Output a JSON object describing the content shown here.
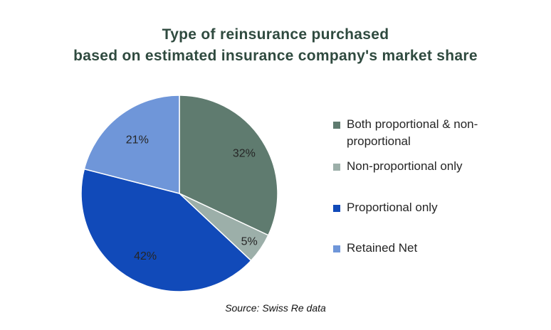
{
  "chart_data": {
    "type": "pie",
    "title_lines": [
      "Type of reinsurance purchased",
      "based on estimated insurance company's market share"
    ],
    "slices": [
      {
        "name": "Both proportional & non-proportional",
        "legend_lines": [
          "Both proportional & non-",
          "proportional"
        ],
        "value": 32,
        "label": "32%",
        "color": "#5f7b6f"
      },
      {
        "name": "Non-proportional only",
        "legend_lines": [
          "Non-proportional only"
        ],
        "value": 5,
        "label": "5%",
        "color": "#9cafa9"
      },
      {
        "name": "Proportional only",
        "legend_lines": [
          "Proportional only"
        ],
        "value": 42,
        "label": "42%",
        "color": "#114ab9"
      },
      {
        "name": "Retained Net",
        "legend_lines": [
          "Retained Net"
        ],
        "value": 21,
        "label": "21%",
        "color": "#6f96d9"
      }
    ],
    "legend_position": "right",
    "source": "Source: Swiss Re data"
  }
}
